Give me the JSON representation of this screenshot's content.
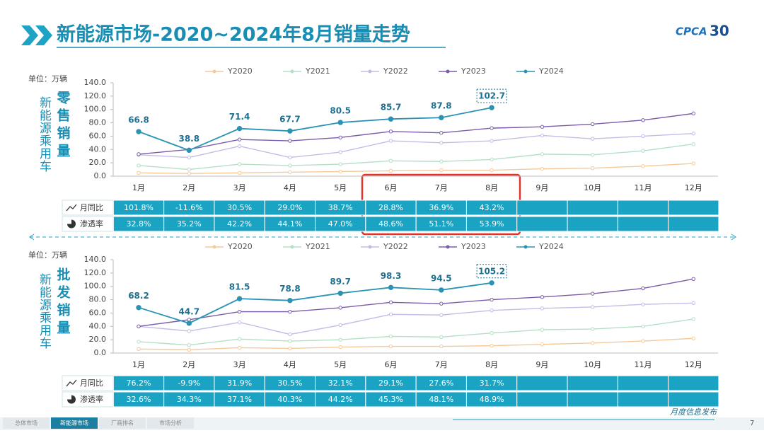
{
  "header": {
    "title": "新能源市场-2020~2024年8月销量走势",
    "logo": "CPCA",
    "anniversary": "30"
  },
  "chart_data": [
    {
      "type": "line",
      "unit": "单位：万辆",
      "side_label": "新能源乘用车",
      "title": "零售销量",
      "categories": [
        "1月",
        "2月",
        "3月",
        "4月",
        "5月",
        "6月",
        "7月",
        "8月",
        "9月",
        "10月",
        "11月",
        "12月"
      ],
      "ylim": [
        0,
        140
      ],
      "yticks": [
        {
          "value": 0,
          "label": "0.0"
        },
        {
          "value": 20,
          "label": "20.0"
        },
        {
          "value": 40,
          "label": "40.0"
        },
        {
          "value": 60,
          "label": "60.0"
        },
        {
          "value": 80,
          "label": "80.0"
        },
        {
          "value": 100,
          "label": "100.0"
        },
        {
          "value": 120,
          "label": "120.0"
        },
        {
          "value": 140,
          "label": "140.0"
        }
      ],
      "legend": "top",
      "series": [
        {
          "name": "Y2020",
          "color": "#f5c99a",
          "values": [
            5,
            4,
            5,
            6,
            7,
            8,
            9,
            9,
            11,
            12,
            15,
            19
          ]
        },
        {
          "name": "Y2021",
          "color": "#b5dfc6",
          "values": [
            16,
            10,
            18,
            16,
            18,
            23,
            22,
            25,
            33,
            32,
            38,
            48
          ]
        },
        {
          "name": "Y2022",
          "color": "#c1bde6",
          "values": [
            32,
            28,
            45,
            28,
            36,
            53,
            50,
            53,
            61,
            56,
            60,
            64
          ]
        },
        {
          "name": "Y2023",
          "color": "#7b5ca8",
          "values": [
            33,
            40,
            55,
            53,
            58,
            67,
            65,
            72,
            74,
            78,
            84,
            94
          ]
        },
        {
          "name": "Y2024",
          "color": "#2a93b4",
          "values": [
            66.8,
            38.8,
            71.4,
            67.7,
            80.5,
            85.7,
            87.8,
            102.7,
            null,
            null,
            null,
            null
          ],
          "labels": true
        }
      ]
    },
    {
      "type": "line",
      "unit": "单位：万辆",
      "side_label": "新能源乘用车",
      "title": "批发销量",
      "categories": [
        "1月",
        "2月",
        "3月",
        "4月",
        "5月",
        "6月",
        "7月",
        "8月",
        "9月",
        "10月",
        "11月",
        "12月"
      ],
      "ylim": [
        0,
        140
      ],
      "yticks": [
        {
          "value": 0,
          "label": "0.0"
        },
        {
          "value": 20,
          "label": "20.0"
        },
        {
          "value": 40,
          "label": "40.0"
        },
        {
          "value": 60,
          "label": "60.0"
        },
        {
          "value": 80,
          "label": "80.0"
        },
        {
          "value": 100,
          "label": "100.0"
        },
        {
          "value": 120,
          "label": "120.0"
        },
        {
          "value": 140,
          "label": "140.0"
        }
      ],
      "legend": "top",
      "series": [
        {
          "name": "Y2020",
          "color": "#f5c99a",
          "values": [
            6,
            5,
            8,
            7,
            9,
            10,
            10,
            11,
            13,
            15,
            18,
            22
          ]
        },
        {
          "name": "Y2021",
          "color": "#b5dfc6",
          "values": [
            17,
            12,
            21,
            18,
            20,
            25,
            24,
            30,
            35,
            36,
            40,
            51
          ]
        },
        {
          "name": "Y2022",
          "color": "#c1bde6",
          "values": [
            40,
            33,
            46,
            28,
            42,
            58,
            57,
            64,
            67,
            69,
            73,
            75
          ]
        },
        {
          "name": "Y2023",
          "color": "#7b5ca8",
          "values": [
            40,
            50,
            62,
            62,
            68,
            76,
            74,
            80,
            84,
            89,
            97,
            111
          ]
        },
        {
          "name": "Y2024",
          "color": "#2a93b4",
          "values": [
            68.2,
            44.7,
            81.5,
            78.8,
            89.7,
            98.3,
            94.5,
            105.2,
            null,
            null,
            null,
            null
          ],
          "labels": true
        }
      ]
    }
  ],
  "tables": [
    {
      "rows": [
        {
          "name": "月同比",
          "values": [
            "101.8%",
            "-11.6%",
            "30.5%",
            "29.0%",
            "38.7%",
            "28.8%",
            "36.9%",
            "43.2%"
          ]
        },
        {
          "name": "渗透率",
          "values": [
            "32.8%",
            "35.2%",
            "42.2%",
            "44.1%",
            "47.0%",
            "48.6%",
            "51.1%",
            "53.9%"
          ]
        }
      ]
    },
    {
      "rows": [
        {
          "name": "月同比",
          "values": [
            "76.2%",
            "-9.9%",
            "31.9%",
            "30.5%",
            "32.1%",
            "29.1%",
            "27.6%",
            "31.7%"
          ]
        },
        {
          "name": "渗透率",
          "values": [
            "32.6%",
            "34.3%",
            "37.1%",
            "40.3%",
            "44.2%",
            "45.3%",
            "48.1%",
            "48.9%"
          ]
        }
      ]
    }
  ],
  "footer": {
    "tabs": [
      "总体市场",
      "新能源市场",
      "厂商排名",
      "市场分析"
    ],
    "note": "月度信息发布",
    "page": "7"
  }
}
